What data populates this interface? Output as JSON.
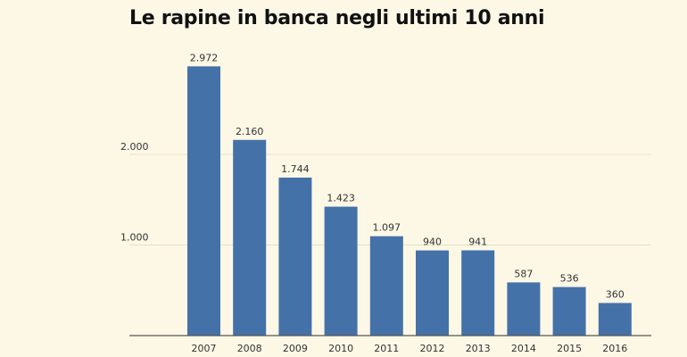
{
  "chart_data": {
    "type": "bar",
    "title": "Le rapine in banca negli ultimi 10 anni",
    "categories": [
      "2007",
      "2008",
      "2009",
      "2010",
      "2011",
      "2012",
      "2013",
      "2014",
      "2015",
      "2016"
    ],
    "values": [
      2972,
      2160,
      1744,
      1423,
      1097,
      940,
      941,
      587,
      536,
      360
    ],
    "value_labels": [
      "2.972",
      "2.160",
      "1.744",
      "1.423",
      "1.097",
      "940",
      "941",
      "587",
      "536",
      "360"
    ],
    "xlabel": "",
    "ylabel": "",
    "ylim": [
      0,
      3000
    ],
    "yticks": [
      1000,
      2000
    ],
    "ytick_labels": [
      "1.000",
      "2.000"
    ],
    "grid": true,
    "legend": "none",
    "bar_color": "#4472a8",
    "background_color": "#fdf8e6",
    "gridline_color": "#e6dfc6"
  }
}
